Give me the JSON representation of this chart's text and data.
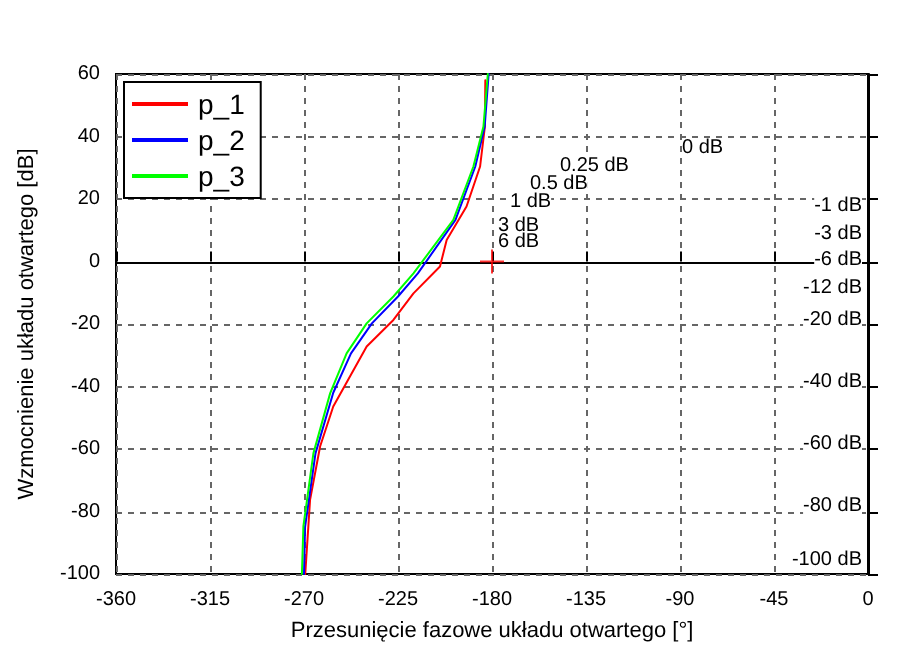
{
  "chart_data": {
    "type": "line",
    "xlabel": "Przesunięcie fazowe układu otwartego [°]",
    "ylabel": "Wzmocnienie układu otwartego [dB]",
    "xlim": [
      -360,
      0
    ],
    "xticks": [
      -360,
      -315,
      -270,
      -225,
      -180,
      -135,
      -90,
      -45,
      0
    ],
    "ylim": [
      -100,
      60
    ],
    "yticks": [
      -100,
      -80,
      -60,
      -40,
      -20,
      0,
      20,
      40,
      60
    ],
    "grid": true,
    "legend": "top left",
    "series": [
      {
        "name": "p_1",
        "color": "#ff0000",
        "x": [
          -269.4,
          -267.1,
          -262.3,
          -256,
          -240,
          -227.2,
          -217.6,
          -204.9,
          -201.7,
          -192.2,
          -185.7,
          -183.4,
          -183.2
        ],
        "values": [
          -100,
          -76.3,
          -59.2,
          -46.4,
          -27.2,
          -18.7,
          -10.2,
          -1.6,
          6.9,
          17.6,
          30.4,
          43.2,
          58
        ]
      },
      {
        "name": "p_2",
        "color": "#0000ff",
        "x": [
          -270,
          -269.5,
          -264.5,
          -256,
          -247.5,
          -237.5,
          -225,
          -215.5,
          -197.5,
          -188,
          -183.5,
          -181.6
        ],
        "values": [
          -100,
          -85,
          -61.4,
          -42,
          -29.4,
          -19.8,
          -11.2,
          -3.8,
          13.3,
          30.4,
          43.2,
          60
        ]
      },
      {
        "name": "p_3",
        "color": "#00ff00",
        "x": [
          -271,
          -270.3,
          -265.5,
          -257.5,
          -249.6,
          -240,
          -227.2,
          -217.6,
          -198.5,
          -188.9,
          -184.1,
          -182
        ],
        "values": [
          -100,
          -84.8,
          -61.4,
          -42.2,
          -29.4,
          -19.8,
          -11.2,
          -3.8,
          13.3,
          30.4,
          43.2,
          60
        ]
      },
      {
        "type": "scatter",
        "marker": "cross",
        "color": "#ff0000",
        "x": [
          -180
        ],
        "values": [
          0
        ]
      }
    ],
    "annotations": [
      "0 dB",
      "0.25 dB",
      "0.5 dB",
      "1 dB",
      "3 dB",
      "6 dB",
      "-1 dB",
      "-3 dB",
      "-6 dB",
      "-12 dB",
      "-20 dB",
      "-40 dB",
      "-60 dB",
      "-80 dB",
      "-100 dB"
    ]
  }
}
